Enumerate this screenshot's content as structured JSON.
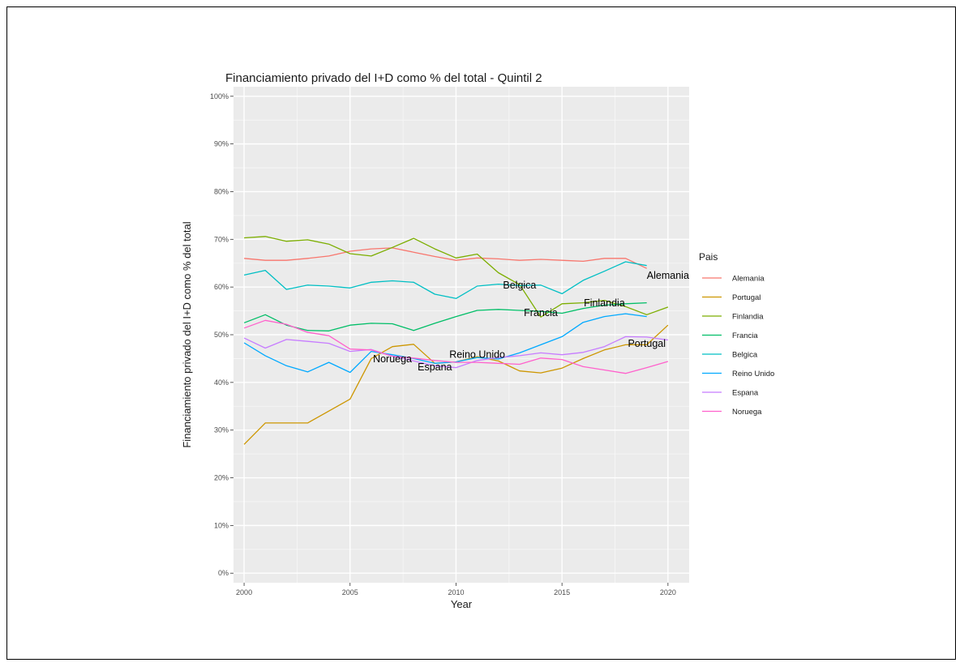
{
  "chart_data": {
    "type": "line",
    "title": "Financiamiento privado del I+D como % del total - Quintil 2",
    "xlabel": "Year",
    "ylabel": "Financiamiento privado del I+D como % del total",
    "xlim": [
      1999.5,
      2021
    ],
    "ylim": [
      -2,
      102
    ],
    "x_ticks": [
      2000,
      2005,
      2010,
      2015,
      2020
    ],
    "y_ticks": [
      0,
      10,
      20,
      30,
      40,
      50,
      60,
      70,
      80,
      90,
      100
    ],
    "y_tick_labels": [
      "0%",
      "10%",
      "20%",
      "30%",
      "40%",
      "50%",
      "60%",
      "70%",
      "80%",
      "90%",
      "100%"
    ],
    "grid": true,
    "legend": {
      "title": "Pais",
      "position": "right"
    },
    "series": [
      {
        "name": "Alemania",
        "color": "#F8766D",
        "x": [
          2000,
          2001,
          2002,
          2003,
          2004,
          2005,
          2006,
          2007,
          2008,
          2009,
          2010,
          2011,
          2012,
          2013,
          2014,
          2015,
          2016,
          2017,
          2018,
          2019
        ],
        "values": [
          66,
          65.6,
          65.6,
          66,
          66.5,
          67.5,
          68,
          68.2,
          67.3,
          66.4,
          65.6,
          66.1,
          65.9,
          65.6,
          65.8,
          65.6,
          65.4,
          66,
          66,
          63.9
        ]
      },
      {
        "name": "Portugal",
        "color": "#CD9600",
        "x": [
          2000,
          2001,
          2002,
          2003,
          2004,
          2005,
          2006,
          2007,
          2008,
          2009,
          2010,
          2011,
          2012,
          2013,
          2014,
          2015,
          2016,
          2017,
          2018,
          2019,
          2020
        ],
        "values": [
          27,
          31.5,
          31.5,
          31.5,
          34,
          36.5,
          45,
          47.5,
          48,
          44,
          44.3,
          45.4,
          44.5,
          42.4,
          42,
          43,
          45,
          46.8,
          47.9,
          47.9,
          52
        ]
      },
      {
        "name": "Finlandia",
        "color": "#7CAE00",
        "x": [
          2000,
          2001,
          2002,
          2003,
          2004,
          2005,
          2006,
          2007,
          2008,
          2009,
          2010,
          2011,
          2012,
          2013,
          2014,
          2015,
          2016,
          2017,
          2018,
          2019,
          2020
        ],
        "values": [
          70.3,
          70.6,
          69.6,
          69.9,
          69,
          67,
          66.5,
          68.3,
          70.2,
          68,
          66.1,
          66.9,
          63,
          60.5,
          53.7,
          56.5,
          56.7,
          57.2,
          55.9,
          54.2,
          55.8
        ]
      },
      {
        "name": "Francia",
        "color": "#00BE67",
        "x": [
          2000,
          2001,
          2002,
          2003,
          2004,
          2005,
          2006,
          2007,
          2008,
          2009,
          2010,
          2011,
          2012,
          2013,
          2014,
          2015,
          2016,
          2017,
          2018,
          2019,
          2020
        ],
        "values": [
          52.5,
          54.2,
          52,
          50.9,
          50.8,
          52,
          52.4,
          52.3,
          50.9,
          52.4,
          53.8,
          55.1,
          55.3,
          55.1,
          54.9,
          54.5,
          55.5,
          56.2,
          56.5,
          56.7,
          null
        ]
      },
      {
        "name": "Belgica",
        "color": "#00BFC4",
        "x": [
          2000,
          2001,
          2002,
          2003,
          2004,
          2005,
          2006,
          2007,
          2008,
          2009,
          2010,
          2011,
          2012,
          2013,
          2014,
          2015,
          2016,
          2017,
          2018,
          2019
        ],
        "values": [
          62.5,
          63.5,
          59.5,
          60.4,
          60.2,
          59.8,
          61,
          61.3,
          61,
          58.5,
          57.6,
          60.2,
          60.6,
          60.3,
          60.4,
          58.6,
          61.4,
          63.3,
          65.3,
          64.5
        ]
      },
      {
        "name": "Reino Unido",
        "color": "#00A9FF",
        "x": [
          2000,
          2001,
          2002,
          2003,
          2004,
          2005,
          2006,
          2007,
          2008,
          2009,
          2010,
          2011,
          2012,
          2013,
          2014,
          2015,
          2016,
          2017,
          2018,
          2019
        ],
        "values": [
          48.3,
          45.6,
          43.5,
          42.2,
          44.2,
          42.1,
          46.5,
          45.8,
          45,
          44,
          44.3,
          45.2,
          44.9,
          46.2,
          47.9,
          49.6,
          52.6,
          53.8,
          54.4,
          53.8
        ]
      },
      {
        "name": "Espana",
        "color": "#C77CFF",
        "x": [
          2000,
          2001,
          2002,
          2003,
          2004,
          2005,
          2006,
          2007,
          2008,
          2009,
          2010,
          2011,
          2012,
          2013,
          2014,
          2015,
          2016,
          2017,
          2018,
          2019,
          2020
        ],
        "values": [
          49.3,
          47.2,
          49,
          48.6,
          48.2,
          46.5,
          46.9,
          45.5,
          44.5,
          43.5,
          43.1,
          44.6,
          45.2,
          45.6,
          46.2,
          45.8,
          46.3,
          47.5,
          49.6,
          49.5,
          48.9
        ]
      },
      {
        "name": "Noruega",
        "color": "#FF61CC",
        "x": [
          2000,
          2001,
          2002,
          2003,
          2004,
          2005,
          2006,
          2007,
          2008,
          2009,
          2010,
          2011,
          2012,
          2013,
          2014,
          2015,
          2016,
          2017,
          2018,
          2019,
          2020
        ],
        "values": [
          51.4,
          53,
          52.2,
          50.5,
          49.8,
          47,
          46.8,
          45.5,
          45.1,
          44.6,
          44.2,
          44.2,
          44,
          43.8,
          45.1,
          44.8,
          43.3,
          42.6,
          41.9,
          43.1,
          44.4
        ]
      }
    ],
    "annotations": [
      {
        "label": "Alemania",
        "x": 2020,
        "y": 62.4
      },
      {
        "label": "Belgica",
        "x": 2013,
        "y": 60.4
      },
      {
        "label": "Finlandia",
        "x": 2017,
        "y": 56.6
      },
      {
        "label": "Francia",
        "x": 2014,
        "y": 54.6
      },
      {
        "label": "Portugal",
        "x": 2019,
        "y": 48.1
      },
      {
        "label": "Reino Unido",
        "x": 2011,
        "y": 45.8
      },
      {
        "label": "Noruega",
        "x": 2007,
        "y": 44.9
      },
      {
        "label": "Espana",
        "x": 2009,
        "y": 43.2
      }
    ]
  }
}
